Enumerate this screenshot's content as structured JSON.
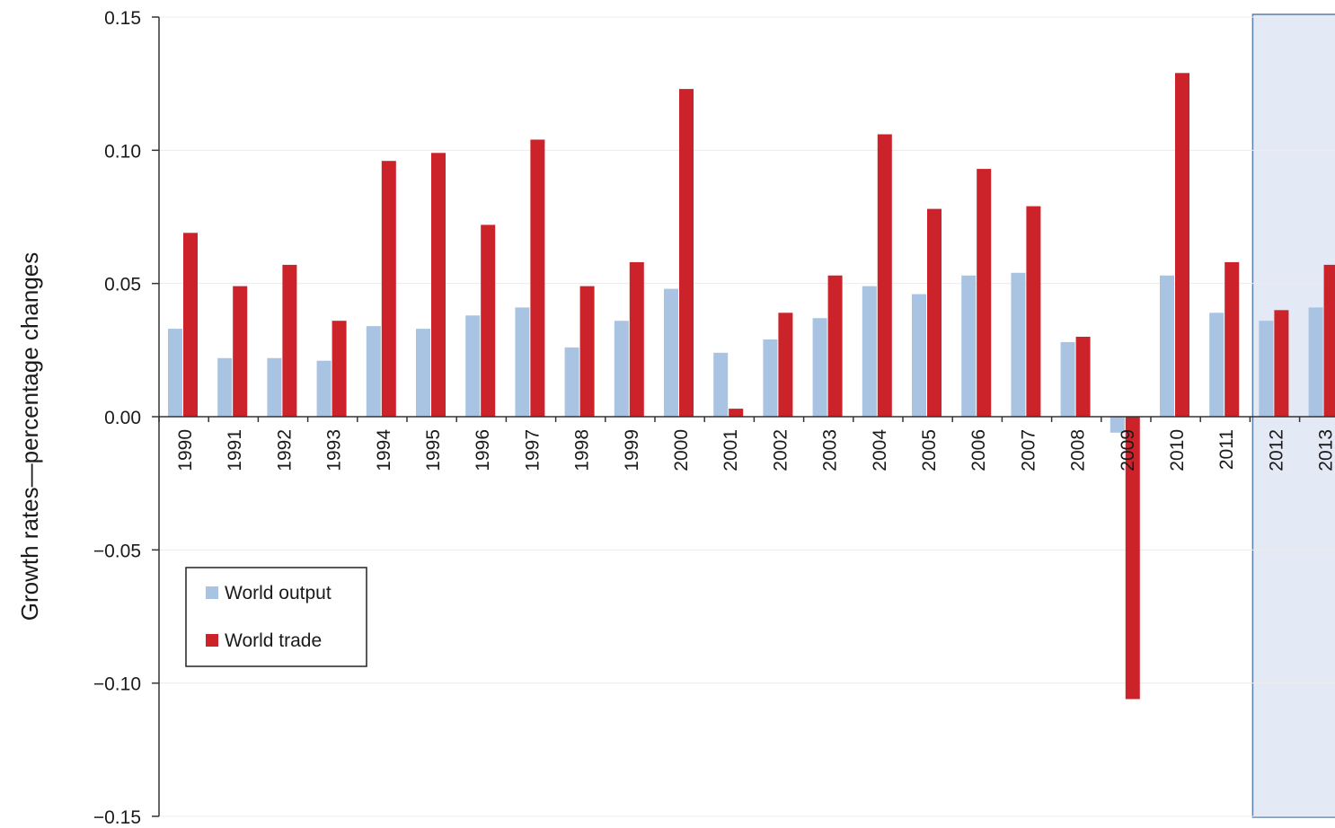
{
  "chart_data": {
    "type": "bar",
    "ylabel": "Growth rates—percentage changes",
    "xlabel": "",
    "ylim": [
      -0.15,
      0.15
    ],
    "yticks": [
      0.15,
      0.1,
      0.05,
      0.0,
      -0.05,
      -0.1,
      -0.15
    ],
    "ytick_labels": [
      "0.15",
      "0.10",
      "0.05",
      "0.00",
      "−0.05",
      "−0.10",
      "−0.15"
    ],
    "categories": [
      "1990",
      "1991",
      "1992",
      "1993",
      "1994",
      "1995",
      "1996",
      "1997",
      "1998",
      "1999",
      "2000",
      "2001",
      "2002",
      "2003",
      "2004",
      "2005",
      "2006",
      "2007",
      "2008",
      "2009",
      "2010",
      "2011",
      "2012",
      "2013"
    ],
    "series": [
      {
        "name": "World output",
        "color": "#a8c4e2",
        "values": [
          0.033,
          0.022,
          0.022,
          0.021,
          0.034,
          0.033,
          0.038,
          0.041,
          0.026,
          0.036,
          0.048,
          0.024,
          0.029,
          0.037,
          0.049,
          0.046,
          0.053,
          0.054,
          0.028,
          -0.006,
          0.053,
          0.039,
          0.036,
          0.041
        ]
      },
      {
        "name": "World trade",
        "color": "#cc2229",
        "values": [
          0.069,
          0.049,
          0.057,
          0.036,
          0.096,
          0.099,
          0.072,
          0.104,
          0.049,
          0.058,
          0.123,
          0.003,
          0.039,
          0.053,
          0.106,
          0.078,
          0.093,
          0.079,
          0.03,
          -0.106,
          0.129,
          0.058,
          0.04,
          0.057
        ]
      }
    ],
    "projection_shading": {
      "from_category": "2012",
      "to_category": "2013",
      "fill": "#e3e9f5",
      "stroke": "#5a7fa8"
    },
    "legend": {
      "placement": "bottom-left"
    },
    "grid": true
  }
}
